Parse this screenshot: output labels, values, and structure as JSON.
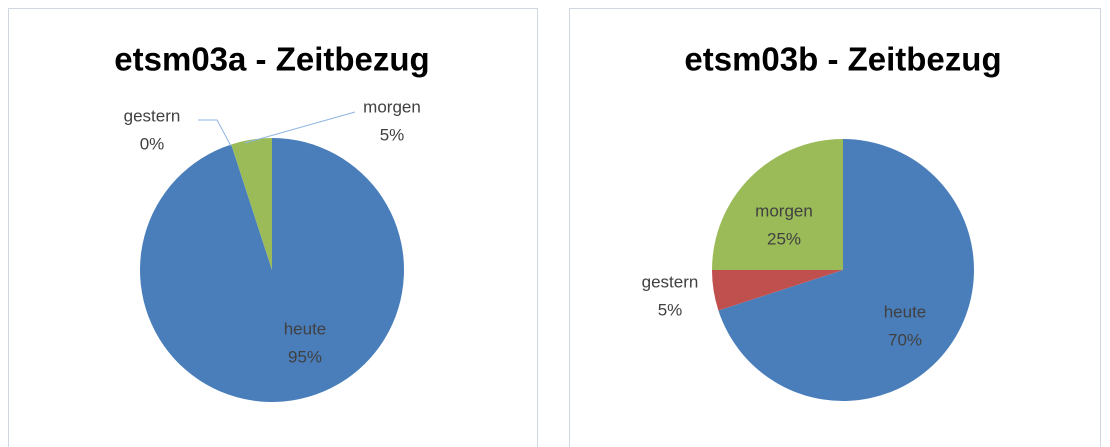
{
  "chart_data": [
    {
      "type": "pie",
      "title": "etsm03a - Zeitbezug",
      "categories": [
        "heute",
        "gestern",
        "morgen"
      ],
      "values": [
        95,
        0,
        5
      ],
      "value_labels": [
        "95%",
        "0%",
        "5%"
      ],
      "colors": [
        "#4a7ebb",
        "#c0504d",
        "#9bbb59"
      ]
    },
    {
      "type": "pie",
      "title": "etsm03b - Zeitbezug",
      "categories": [
        "heute",
        "gestern",
        "morgen"
      ],
      "values": [
        70,
        5,
        25
      ],
      "value_labels": [
        "70%",
        "5%",
        "25%"
      ],
      "colors": [
        "#4a7ebb",
        "#c0504d",
        "#9bbb59"
      ]
    }
  ]
}
